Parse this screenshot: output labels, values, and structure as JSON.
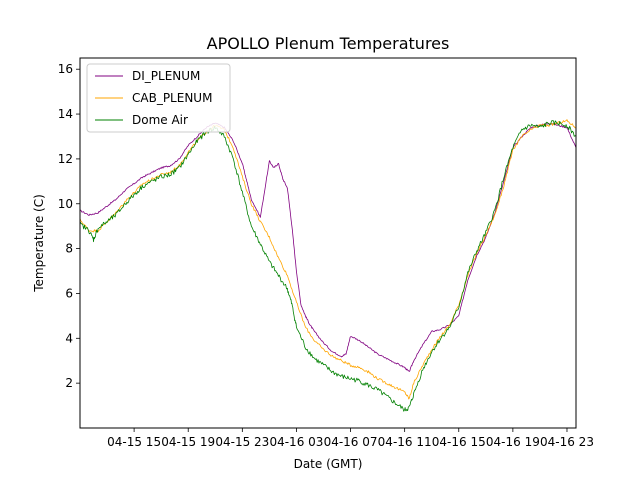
{
  "chart_data": {
    "type": "line",
    "title": "APOLLO Plenum Temperatures",
    "xlabel": "Date (GMT)",
    "ylabel": "Temperature (C)",
    "xlim": [
      0,
      55
    ],
    "ylim": [
      0,
      16.5
    ],
    "yticks": [
      2,
      4,
      6,
      8,
      10,
      12,
      14,
      16
    ],
    "yticklabels": [
      "2",
      "4",
      "6",
      "8",
      "10",
      "12",
      "14",
      "16"
    ],
    "xticks": [
      6,
      12,
      18,
      24,
      30,
      36,
      42,
      48,
      54
    ],
    "xticklabels": [
      "04-15 15",
      "04-15 19",
      "04-15 23",
      "04-16 03",
      "04-16 07",
      "04-16 11",
      "04-16 15",
      "04-16 19",
      "04-16 23"
    ],
    "grid": false,
    "legend_position": "top-left",
    "series": [
      {
        "name": "DI_PLENUM",
        "color": "#800080",
        "x": [
          0,
          1,
          2,
          3,
          4,
          5,
          6,
          7,
          8,
          9,
          10,
          11,
          12,
          13,
          14,
          15,
          16,
          17,
          18,
          18.5,
          19,
          20,
          21,
          21.5,
          22,
          22.5,
          23,
          23.5,
          24,
          24.5,
          25,
          25.5,
          26,
          27,
          28,
          29,
          29.5,
          30,
          31,
          32,
          33,
          34,
          35,
          36,
          36.5,
          37,
          38,
          39,
          40,
          41,
          42,
          43,
          44,
          45,
          46,
          47,
          48,
          49,
          50,
          51,
          52,
          53,
          54,
          55
        ],
        "y": [
          9.7,
          9.5,
          9.6,
          9.9,
          10.2,
          10.6,
          10.9,
          11.2,
          11.4,
          11.6,
          11.7,
          12.0,
          12.6,
          13.0,
          13.4,
          13.6,
          13.4,
          12.8,
          11.8,
          11.0,
          10.2,
          9.4,
          11.9,
          11.6,
          11.8,
          11.1,
          10.7,
          9.0,
          7.0,
          5.5,
          5.0,
          4.6,
          4.3,
          3.8,
          3.4,
          3.2,
          3.3,
          4.1,
          3.9,
          3.6,
          3.3,
          3.1,
          2.9,
          2.7,
          2.5,
          3.0,
          3.7,
          4.3,
          4.4,
          4.6,
          5.0,
          6.6,
          7.7,
          8.5,
          9.6,
          11.0,
          12.5,
          13.0,
          13.4,
          13.5,
          13.6,
          13.5,
          13.4,
          12.5
        ]
      },
      {
        "name": "CAB_PLENUM",
        "color": "#ffa500",
        "x": [
          0,
          1,
          2,
          3,
          4,
          5,
          6,
          7,
          8,
          9,
          10,
          11,
          12,
          13,
          14,
          15,
          16,
          17,
          18,
          19,
          20,
          21,
          22,
          23,
          24,
          25,
          26,
          27,
          28,
          29,
          30,
          31,
          32,
          33,
          34,
          35,
          36,
          36.5,
          37,
          38,
          39,
          40,
          41,
          42,
          43,
          44,
          45,
          46,
          47,
          48,
          49,
          50,
          51,
          52,
          53,
          54,
          55
        ],
        "y": [
          9.3,
          8.8,
          8.8,
          9.2,
          9.6,
          10.1,
          10.5,
          10.9,
          11.1,
          11.3,
          11.4,
          11.7,
          12.3,
          12.8,
          13.2,
          13.5,
          13.3,
          12.5,
          11.2,
          10.0,
          9.2,
          8.5,
          7.6,
          6.8,
          5.6,
          4.5,
          3.9,
          3.5,
          3.2,
          3.0,
          2.8,
          2.7,
          2.5,
          2.2,
          2.0,
          1.8,
          1.6,
          1.3,
          2.0,
          2.8,
          3.5,
          4.1,
          4.6,
          5.5,
          6.8,
          7.8,
          8.6,
          9.5,
          10.8,
          12.4,
          13.0,
          13.3,
          13.5,
          13.5,
          13.6,
          13.7,
          13.4
        ]
      },
      {
        "name": "Dome Air",
        "color": "#008000",
        "x": [
          0,
          1,
          1.5,
          2,
          3,
          4,
          5,
          6,
          7,
          8,
          9,
          10,
          11,
          12,
          13,
          14,
          15,
          16,
          17,
          18,
          19,
          20,
          21,
          22,
          23,
          23.5,
          24,
          25,
          26,
          27,
          28,
          29,
          30,
          31,
          32,
          33,
          34,
          35,
          36,
          36.5,
          37,
          38,
          39,
          40,
          41,
          42,
          43,
          44,
          45,
          46,
          47,
          48,
          49,
          50,
          51,
          52,
          53,
          54,
          55
        ],
        "y": [
          9.1,
          8.8,
          8.4,
          8.9,
          9.2,
          9.5,
          10.0,
          10.4,
          10.8,
          11.0,
          11.2,
          11.3,
          11.6,
          12.2,
          12.8,
          13.2,
          13.4,
          13.0,
          12.0,
          10.5,
          9.0,
          8.2,
          7.4,
          6.8,
          6.2,
          5.5,
          4.5,
          3.6,
          3.1,
          2.8,
          2.5,
          2.3,
          2.2,
          2.1,
          1.9,
          1.7,
          1.4,
          1.1,
          0.8,
          0.9,
          1.5,
          2.6,
          3.4,
          4.0,
          4.5,
          5.4,
          6.9,
          7.9,
          8.7,
          9.7,
          11.2,
          12.5,
          13.3,
          13.5,
          13.4,
          13.6,
          13.6,
          13.5,
          13.0
        ]
      }
    ]
  }
}
